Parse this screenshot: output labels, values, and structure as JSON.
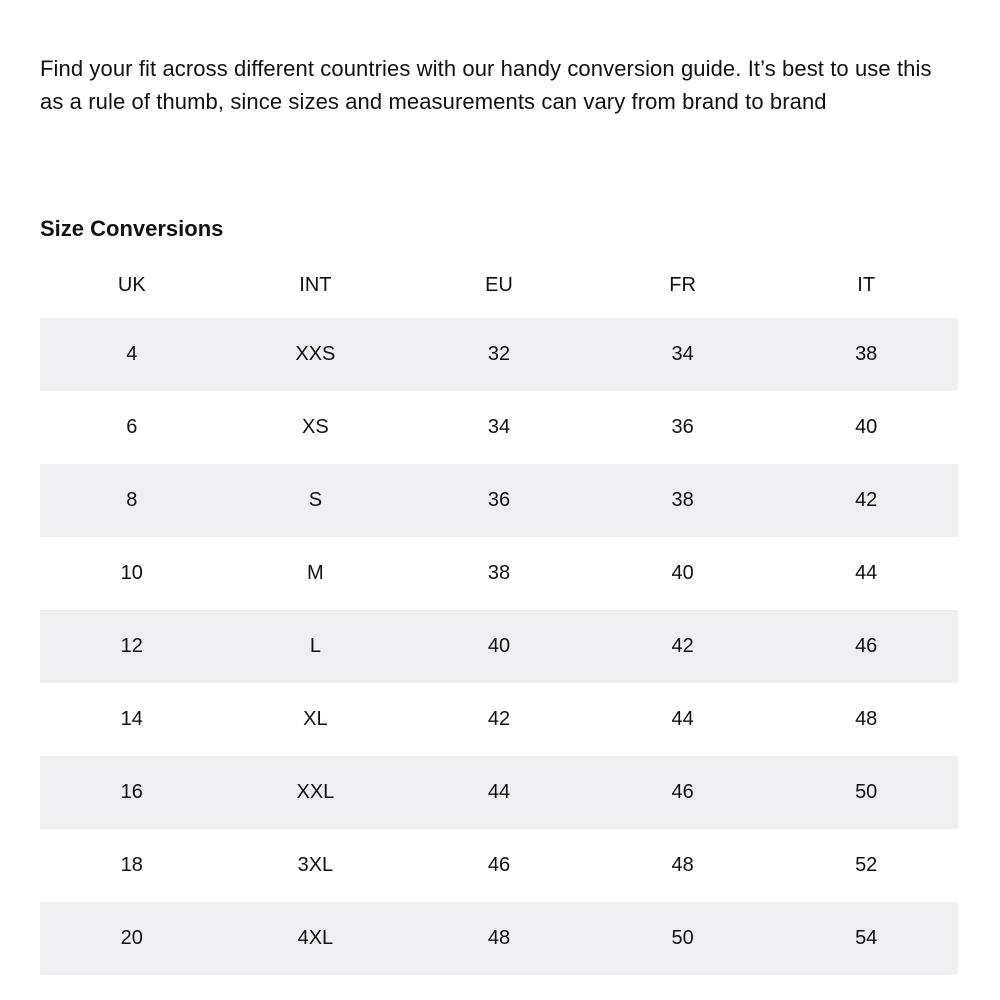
{
  "intro_text": "Find your fit across different countries with our handy conversion guide. It’s best to use this as a rule of thumb, since sizes and measurements can vary from brand to brand",
  "section_title": "Size Conversions",
  "table": {
    "headers": [
      "UK",
      "INT",
      "EU",
      "FR",
      "IT"
    ],
    "rows": [
      [
        "4",
        "XXS",
        "32",
        "34",
        "38"
      ],
      [
        "6",
        "XS",
        "34",
        "36",
        "40"
      ],
      [
        "8",
        "S",
        "36",
        "38",
        "42"
      ],
      [
        "10",
        "M",
        "38",
        "40",
        "44"
      ],
      [
        "12",
        "L",
        "40",
        "42",
        "46"
      ],
      [
        "14",
        "XL",
        "42",
        "44",
        "48"
      ],
      [
        "16",
        "XXL",
        "44",
        "46",
        "50"
      ],
      [
        "18",
        "3XL",
        "46",
        "48",
        "52"
      ],
      [
        "20",
        "4XL",
        "48",
        "50",
        "54"
      ]
    ]
  },
  "colors": {
    "text": "#111111",
    "stripe": "#efeff1",
    "background": "#ffffff"
  }
}
